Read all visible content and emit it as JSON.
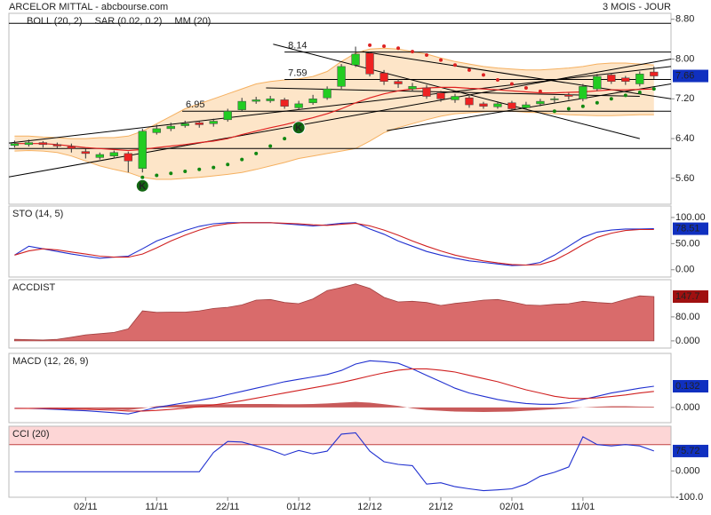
{
  "chart_data": [
    {
      "type": "candlestick",
      "title": "ARCELOR MITTAL - abcbourse.com",
      "period": "3 MOIS - JOUR",
      "legend": [
        {
          "name": "BOLL (20, 2)",
          "color": "#f0a040"
        },
        {
          "name": "SAR (0.02, 0.2)",
          "color": "#e02020"
        },
        {
          "name": "MM (20)",
          "color": "#e02020"
        }
      ],
      "xlim": [
        -0.4,
        46.2
      ],
      "ylim": [
        5.08,
        8.92
      ],
      "yticks": [
        {
          "value": 8.8,
          "label": "8.80"
        },
        {
          "value": 8,
          "label": "8.00"
        },
        {
          "value": 7.2,
          "label": "7.20"
        },
        {
          "value": 6.4,
          "label": "6.40"
        },
        {
          "value": 5.6,
          "label": "5.60"
        }
      ],
      "open": [
        6.26,
        6.28,
        6.32,
        6.28,
        6.24,
        6.14,
        6.02,
        6.05,
        6.1,
        5.8,
        6.52,
        6.6,
        6.66,
        6.72,
        6.7,
        6.78,
        6.98,
        7.15,
        7.16,
        7.18,
        7.02,
        7.12,
        7.22,
        7.45,
        7.88,
        8.12,
        7.72,
        7.55,
        7.4,
        7.42,
        7.32,
        7.18,
        7.22,
        7.1,
        7.04,
        7.12,
        7.02,
        7.1,
        7.18,
        7.28,
        7.2,
        7.4,
        7.68,
        7.62,
        7.5,
        7.74
      ],
      "high": [
        6.36,
        6.38,
        6.35,
        6.32,
        6.3,
        6.2,
        6.12,
        6.16,
        6.14,
        6.6,
        6.68,
        6.72,
        6.76,
        6.76,
        6.8,
        7.0,
        7.22,
        7.24,
        7.26,
        7.22,
        7.16,
        7.28,
        7.45,
        7.9,
        8.25,
        8.15,
        7.78,
        7.6,
        7.52,
        7.48,
        7.36,
        7.3,
        7.26,
        7.14,
        7.15,
        7.16,
        7.14,
        7.2,
        7.25,
        7.32,
        7.5,
        7.7,
        7.72,
        7.66,
        7.75,
        7.85
      ],
      "low": [
        6.22,
        6.24,
        6.22,
        6.2,
        6.12,
        6.0,
        5.98,
        6.0,
        5.72,
        5.72,
        6.48,
        6.55,
        6.62,
        6.62,
        6.64,
        6.74,
        6.94,
        7.1,
        7.12,
        7.0,
        6.98,
        7.08,
        7.18,
        7.4,
        7.84,
        7.65,
        7.48,
        7.42,
        7.35,
        7.2,
        7.14,
        7.12,
        7.02,
        7.0,
        7.0,
        6.95,
        6.98,
        7.05,
        7.12,
        7.18,
        7.15,
        7.36,
        7.5,
        7.48,
        7.45,
        7.6
      ],
      "close": [
        6.3,
        6.32,
        6.28,
        6.25,
        6.2,
        6.1,
        6.08,
        6.12,
        5.95,
        6.55,
        6.6,
        6.65,
        6.7,
        6.68,
        6.75,
        6.95,
        7.15,
        7.18,
        7.2,
        7.05,
        7.1,
        7.2,
        7.4,
        7.85,
        8.1,
        7.7,
        7.55,
        7.5,
        7.45,
        7.25,
        7.2,
        7.25,
        7.08,
        7.05,
        7.1,
        7.0,
        7.08,
        7.15,
        7.2,
        7.25,
        7.45,
        7.65,
        7.55,
        7.55,
        7.7,
        7.66
      ],
      "up_color": "#22cc22",
      "down_color": "#ee2222",
      "boll_upper": [
        6.45,
        6.45,
        6.43,
        6.42,
        6.4,
        6.4,
        6.42,
        6.42,
        6.45,
        6.55,
        6.7,
        6.85,
        7.0,
        7.1,
        7.2,
        7.3,
        7.4,
        7.5,
        7.55,
        7.58,
        7.6,
        7.65,
        7.75,
        7.95,
        8.12,
        8.2,
        8.22,
        8.2,
        8.15,
        8.1,
        8.02,
        7.95,
        7.9,
        7.85,
        7.82,
        7.8,
        7.78,
        7.78,
        7.8,
        7.82,
        7.85,
        7.9,
        7.92,
        7.92,
        7.9,
        7.88
      ],
      "boll_lower": [
        6.15,
        6.16,
        6.15,
        6.12,
        6.05,
        5.95,
        5.85,
        5.78,
        5.72,
        5.62,
        5.58,
        5.58,
        5.6,
        5.62,
        5.65,
        5.68,
        5.72,
        5.78,
        5.85,
        5.92,
        6.0,
        6.05,
        6.1,
        6.15,
        6.2,
        6.35,
        6.52,
        6.62,
        6.7,
        6.78,
        6.85,
        6.9,
        6.92,
        6.94,
        6.95,
        6.95,
        6.93,
        6.92,
        6.9,
        6.88,
        6.87,
        6.86,
        6.86,
        6.87,
        6.88,
        6.88
      ],
      "mm": [
        6.3,
        6.3,
        6.3,
        6.28,
        6.25,
        6.22,
        6.2,
        6.18,
        6.16,
        6.18,
        6.22,
        6.25,
        6.28,
        6.32,
        6.35,
        6.4,
        6.48,
        6.55,
        6.62,
        6.68,
        6.75,
        6.82,
        6.9,
        7.0,
        7.12,
        7.22,
        7.3,
        7.36,
        7.4,
        7.42,
        7.43,
        7.43,
        7.41,
        7.4,
        7.38,
        7.36,
        7.34,
        7.32,
        7.32,
        7.33,
        7.34,
        7.36,
        7.38,
        7.38,
        7.39,
        7.4
      ],
      "sar": [
        null,
        null,
        null,
        null,
        null,
        null,
        null,
        null,
        null,
        5.62,
        5.66,
        5.7,
        5.74,
        5.78,
        5.82,
        5.88,
        5.98,
        6.1,
        6.25,
        6.4,
        6.55,
        null,
        null,
        null,
        null,
        8.28,
        8.26,
        8.22,
        8.15,
        8.08,
        7.98,
        7.88,
        7.78,
        7.68,
        7.58,
        7.5,
        7.42,
        7.35,
        6.95,
        7.0,
        7.05,
        7.12,
        7.2,
        7.27,
        7.33,
        7.4
      ],
      "annotations": [
        {
          "index": 9,
          "price": 5.45,
          "label": "K"
        },
        {
          "index": 20,
          "price": 6.62,
          "label": "K"
        }
      ],
      "levels": [
        {
          "value": 8.14,
          "from": 19.0
        },
        {
          "value": 7.59,
          "from": 19.0
        },
        {
          "value": 6.95,
          "from": 11.8
        }
      ],
      "lines": [
        8.72,
        6.2
      ],
      "trendlines": [
        [
          -0.4,
          5.63,
          46.2,
          8.0
        ],
        [
          -0.4,
          6.31,
          46.2,
          7.85
        ],
        [
          18.2,
          8.3,
          44.0,
          6.4
        ],
        [
          17.7,
          7.42,
          44.0,
          7.25
        ],
        [
          26.2,
          6.56,
          46.2,
          7.5
        ],
        [
          24.5,
          8.15,
          46.2,
          7.2
        ]
      ],
      "last_box_color": "#1030c0"
    },
    {
      "type": "line",
      "title": "STO (14, 5)",
      "xlim": [
        -0.4,
        46.2
      ],
      "ylim": [
        -14,
        122
      ],
      "yticks": [
        {
          "value": 100,
          "label": "100.00"
        },
        {
          "value": 50,
          "label": "50.00"
        },
        {
          "value": 0,
          "label": "0.00"
        }
      ],
      "series": [
        {
          "color": "#2030d0",
          "values": [
            28,
            45,
            40,
            35,
            30,
            26,
            22,
            24,
            26,
            40,
            55,
            65,
            75,
            83,
            88,
            90,
            90,
            90,
            90,
            88,
            86,
            84,
            86,
            89,
            90,
            78,
            68,
            55,
            45,
            35,
            28,
            22,
            17,
            14,
            11,
            8,
            9,
            14,
            28,
            45,
            62,
            72,
            76,
            78,
            78,
            78.51
          ]
        },
        {
          "color": "#d02020",
          "values": [
            28,
            36,
            40,
            38,
            34,
            30,
            26,
            24,
            24,
            30,
            42,
            55,
            66,
            76,
            84,
            88,
            90,
            90,
            90,
            89,
            88,
            86,
            85,
            87,
            89,
            84,
            76,
            66,
            55,
            45,
            36,
            28,
            22,
            17,
            13,
            10,
            9,
            10,
            18,
            32,
            48,
            62,
            70,
            75,
            77,
            77
          ]
        }
      ],
      "last_box_color": "#1030c0"
    },
    {
      "type": "area",
      "title": "ACCDIST",
      "xlim": [
        -0.4,
        46.2
      ],
      "ylim": [
        -24,
        204
      ],
      "yticks": [
        {
          "value": 80,
          "label": "80.00"
        },
        {
          "value": 0,
          "label": "0.000"
        }
      ],
      "series": [
        {
          "color": "#d96b6b",
          "values": [
            5,
            4,
            3,
            5,
            12,
            20,
            24,
            28,
            40,
            100,
            95,
            96,
            96,
            100,
            108,
            112,
            120,
            136,
            138,
            128,
            124,
            140,
            168,
            178,
            190,
            175,
            145,
            130,
            132,
            128,
            118,
            125,
            130,
            136,
            138,
            130,
            120,
            118,
            122,
            124,
            132,
            128,
            125,
            138,
            150,
            147.7
          ]
        }
      ],
      "last_box_color": "#a01010"
    },
    {
      "type": "line",
      "title": "MACD (12, 26, 9)",
      "xlim": [
        -0.4,
        46.2
      ],
      "ylim": [
        -0.094,
        0.336
      ],
      "yticks": [
        {
          "value": 0,
          "label": "0.000"
        }
      ],
      "histogram": {
        "color": "#c85a5a",
        "values": [
          0,
          0,
          -0.002,
          -0.004,
          -0.006,
          -0.008,
          -0.01,
          -0.012,
          -0.015,
          -0.005,
          0.008,
          0.015,
          0.018,
          0.02,
          0.02,
          0.02,
          0.022,
          0.022,
          0.022,
          0.02,
          0.02,
          0.022,
          0.025,
          0.03,
          0.035,
          0.03,
          0.02,
          0.01,
          -0.005,
          -0.015,
          -0.02,
          -0.025,
          -0.027,
          -0.028,
          -0.027,
          -0.025,
          -0.02,
          -0.015,
          -0.01,
          -0.005,
          0,
          0.005,
          0.008,
          0.008,
          0.006,
          0.005
        ]
      },
      "series": [
        {
          "color": "#2030d0",
          "values": [
            -0.005,
            -0.006,
            -0.008,
            -0.012,
            -0.016,
            -0.02,
            -0.026,
            -0.032,
            -0.04,
            -0.02,
            0.0,
            0.015,
            0.03,
            0.045,
            0.06,
            0.08,
            0.1,
            0.12,
            0.14,
            0.16,
            0.175,
            0.19,
            0.205,
            0.23,
            0.27,
            0.29,
            0.285,
            0.275,
            0.24,
            0.2,
            0.16,
            0.12,
            0.09,
            0.07,
            0.05,
            0.035,
            0.025,
            0.02,
            0.02,
            0.03,
            0.05,
            0.07,
            0.09,
            0.105,
            0.12,
            0.132
          ]
        },
        {
          "color": "#d02020",
          "values": [
            -0.005,
            -0.005,
            -0.006,
            -0.007,
            -0.009,
            -0.011,
            -0.014,
            -0.017,
            -0.022,
            -0.022,
            -0.018,
            -0.012,
            -0.004,
            0.006,
            0.016,
            0.028,
            0.042,
            0.058,
            0.074,
            0.09,
            0.106,
            0.122,
            0.138,
            0.155,
            0.175,
            0.196,
            0.215,
            0.232,
            0.24,
            0.24,
            0.232,
            0.22,
            0.2,
            0.18,
            0.16,
            0.135,
            0.11,
            0.09,
            0.07,
            0.058,
            0.056,
            0.06,
            0.068,
            0.078,
            0.09,
            0.1
          ]
        }
      ],
      "last_box_color": "#1030c0"
    },
    {
      "type": "line",
      "title": "CCI (20)",
      "xlim": [
        -0.4,
        46.2
      ],
      "ylim": [
        -100,
        170
      ],
      "yticks": [
        {
          "value": 0,
          "label": "0.000"
        },
        {
          "value": -100,
          "label": "-100.0"
        }
      ],
      "threshold": 100,
      "threshold_color": "#fdd6d6",
      "series": [
        {
          "color": "#2030d0",
          "values": [
            -3,
            -3,
            -3,
            -3,
            -3,
            -3,
            -3,
            -3,
            -3,
            -3,
            -3,
            -3,
            -3,
            -3,
            70,
            112,
            110,
            95,
            80,
            60,
            78,
            65,
            75,
            140,
            145,
            75,
            35,
            25,
            20,
            -50,
            -45,
            -60,
            -68,
            -75,
            -72,
            -68,
            -50,
            -20,
            -5,
            15,
            130,
            100,
            95,
            100,
            95,
            75.72
          ]
        }
      ],
      "xticks": [
        {
          "value": 5,
          "label": "02/11"
        },
        {
          "value": 10,
          "label": "11/11"
        },
        {
          "value": 15,
          "label": "22/11"
        },
        {
          "value": 20,
          "label": "01/12"
        },
        {
          "value": 25,
          "label": "12/12"
        },
        {
          "value": 30,
          "label": "21/12"
        },
        {
          "value": 35,
          "label": "02/01"
        },
        {
          "value": 40,
          "label": "11/01"
        }
      ],
      "last_box_color": "#1030c0"
    }
  ]
}
